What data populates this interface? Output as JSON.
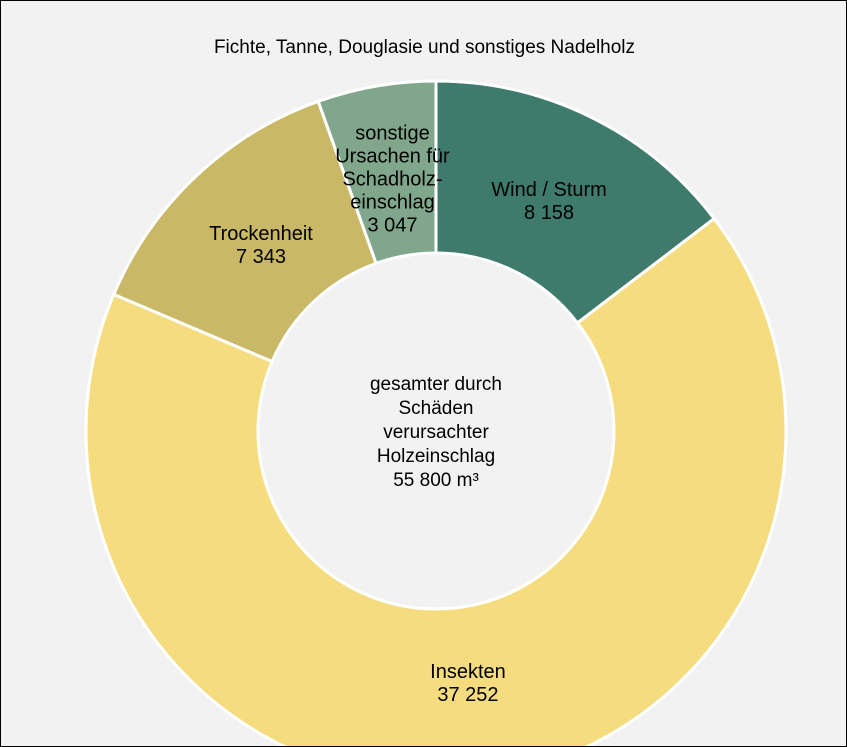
{
  "chart_data": {
    "type": "pie",
    "donut": true,
    "title": "Fichte, Tanne, Douglasie und sonstiges Nadelholz",
    "center_label": "gesamter durch Schäden verursachter Holzeinschlag",
    "center_total": "55 800 m³",
    "categories": [
      "Wind / Sturm",
      "Insekten",
      "Trockenheit",
      "sonstige Ursachen für Schadholz-einschlag"
    ],
    "values": [
      8158,
      37252,
      7343,
      3047
    ],
    "value_labels": [
      "8 158",
      "37 252",
      "7 343",
      "3 047"
    ],
    "colors": [
      "#3f7b6d",
      "#f5dd7f",
      "#c9b865",
      "#80a78b"
    ]
  }
}
